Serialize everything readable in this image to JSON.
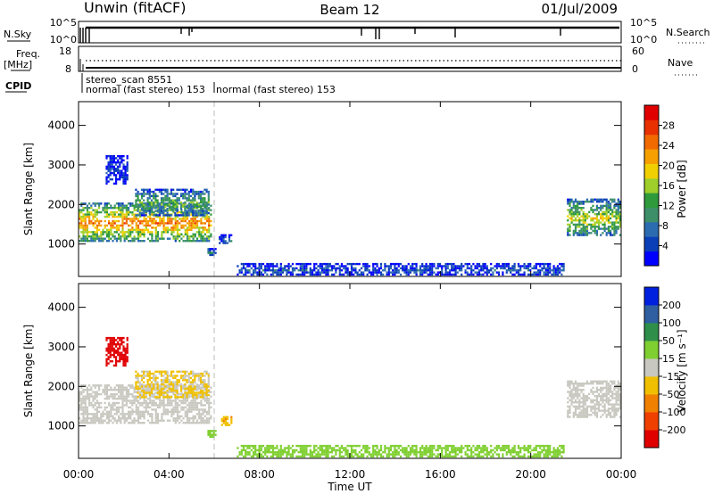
{
  "header": {
    "station": "Unwin (fitACF)",
    "beam": "Beam 12",
    "date": "01/Jul/2009"
  },
  "status_panels": {
    "nsky_label": "N.Sky",
    "nsky_ticks": [
      "10^5",
      "10^0"
    ],
    "nsearch_label": "N.Search",
    "nsearch_ticks": [
      "10^5",
      "10^0"
    ],
    "freq_label_top": "Freq.",
    "freq_label_unit": "[MHz]",
    "freq_ticks": [
      "18",
      "8"
    ],
    "nave_label": "Nave",
    "nave_ticks": [
      "60",
      "0"
    ],
    "cpid_label": "CPID",
    "cpid_entries": [
      {
        "text": "stereo_scan 8551",
        "start_hour": 0.3
      },
      {
        "text": "normal (fast stereo) 153",
        "start_hour": 0.3
      },
      {
        "text": "normal (fast stereo) 153",
        "start_hour": 6.0
      }
    ]
  },
  "chart_data": [
    {
      "type": "heatmap",
      "parameter": "power",
      "ylabel": "Slant Range [km]",
      "xlabel": "",
      "xlim": [
        0,
        24
      ],
      "ylim": [
        180,
        4600
      ],
      "x_ticks": [
        0,
        4,
        8,
        12,
        16,
        20,
        24
      ],
      "x_tick_labels": [
        "00:00",
        "04:00",
        "08:00",
        "12:00",
        "16:00",
        "20:00",
        "00:00"
      ],
      "y_ticks": [
        1000,
        2000,
        3000,
        4000
      ],
      "y_tick_labels": [
        "1000",
        "2000",
        "3000",
        "4000"
      ],
      "colorbar": {
        "label": "Power [dB]",
        "ticks": [
          "4",
          "8",
          "12",
          "16",
          "20",
          "24",
          "28"
        ],
        "tick_values": [
          4,
          8,
          12,
          16,
          20,
          24,
          28
        ],
        "range": [
          0,
          32
        ],
        "colors": [
          "#0000ff",
          "#0b3fb8",
          "#2b6bb0",
          "#3d8f6a",
          "#2e9a3c",
          "#9ecf2a",
          "#f0d000",
          "#f5a000",
          "#f06a00",
          "#e83000",
          "#e00000"
        ]
      },
      "regions": [
        {
          "t0": 0.0,
          "t1": 5.9,
          "r0": 1050,
          "r1": 2050,
          "level": 22
        },
        {
          "t0": 2.5,
          "t1": 5.8,
          "r0": 1700,
          "r1": 2400,
          "level": 12
        },
        {
          "t0": 1.2,
          "t1": 2.2,
          "r0": 2500,
          "r1": 3250,
          "level": 3
        },
        {
          "t0": 6.2,
          "t1": 6.8,
          "r0": 1000,
          "r1": 1250,
          "level": 6
        },
        {
          "t0": 5.7,
          "t1": 6.1,
          "r0": 700,
          "r1": 900,
          "level": 8
        },
        {
          "t0": 21.6,
          "t1": 24.0,
          "r0": 1200,
          "r1": 2150,
          "level": 16
        },
        {
          "t0": 7.0,
          "t1": 21.5,
          "r0": 200,
          "r1": 520,
          "level": 5
        }
      ]
    },
    {
      "type": "heatmap",
      "parameter": "velocity",
      "ylabel": "Slant Range [km]",
      "xlabel": "Time UT",
      "xlim": [
        0,
        24
      ],
      "ylim": [
        180,
        4600
      ],
      "x_ticks": [
        0,
        4,
        8,
        12,
        16,
        20,
        24
      ],
      "x_tick_labels": [
        "00:00",
        "04:00",
        "08:00",
        "12:00",
        "16:00",
        "20:00",
        "00:00"
      ],
      "y_ticks": [
        1000,
        2000,
        3000,
        4000
      ],
      "y_tick_labels": [
        "1000",
        "2000",
        "3000",
        "4000"
      ],
      "colorbar": {
        "label": "Velocity [m s⁻¹]",
        "ticks": [
          "200",
          "100",
          "50",
          "15",
          "–15",
          "–50",
          "–100",
          "–200"
        ],
        "tick_values": [
          200,
          100,
          50,
          15,
          -15,
          -50,
          -100,
          -200
        ],
        "colors": [
          "#0020e0",
          "#2f5fa0",
          "#2f8f4a",
          "#7fcf30",
          "#c8c8c0",
          "#f0c000",
          "#f08000",
          "#f04000",
          "#e00000"
        ]
      },
      "regions": [
        {
          "t0": 0.0,
          "t1": 5.9,
          "r0": 1050,
          "r1": 2050,
          "level": 0
        },
        {
          "t0": 2.5,
          "t1": 5.8,
          "r0": 1700,
          "r1": 2400,
          "level": -20
        },
        {
          "t0": 1.2,
          "t1": 2.2,
          "r0": 2500,
          "r1": 3250,
          "level": -220
        },
        {
          "t0": 6.3,
          "t1": 6.8,
          "r0": 1000,
          "r1": 1250,
          "level": -40
        },
        {
          "t0": 5.7,
          "t1": 6.1,
          "r0": 700,
          "r1": 900,
          "level": 30
        },
        {
          "t0": 21.6,
          "t1": 24.0,
          "r0": 1200,
          "r1": 2150,
          "level": 0
        },
        {
          "t0": 7.0,
          "t1": 21.5,
          "r0": 200,
          "r1": 520,
          "level": 30
        }
      ]
    }
  ]
}
